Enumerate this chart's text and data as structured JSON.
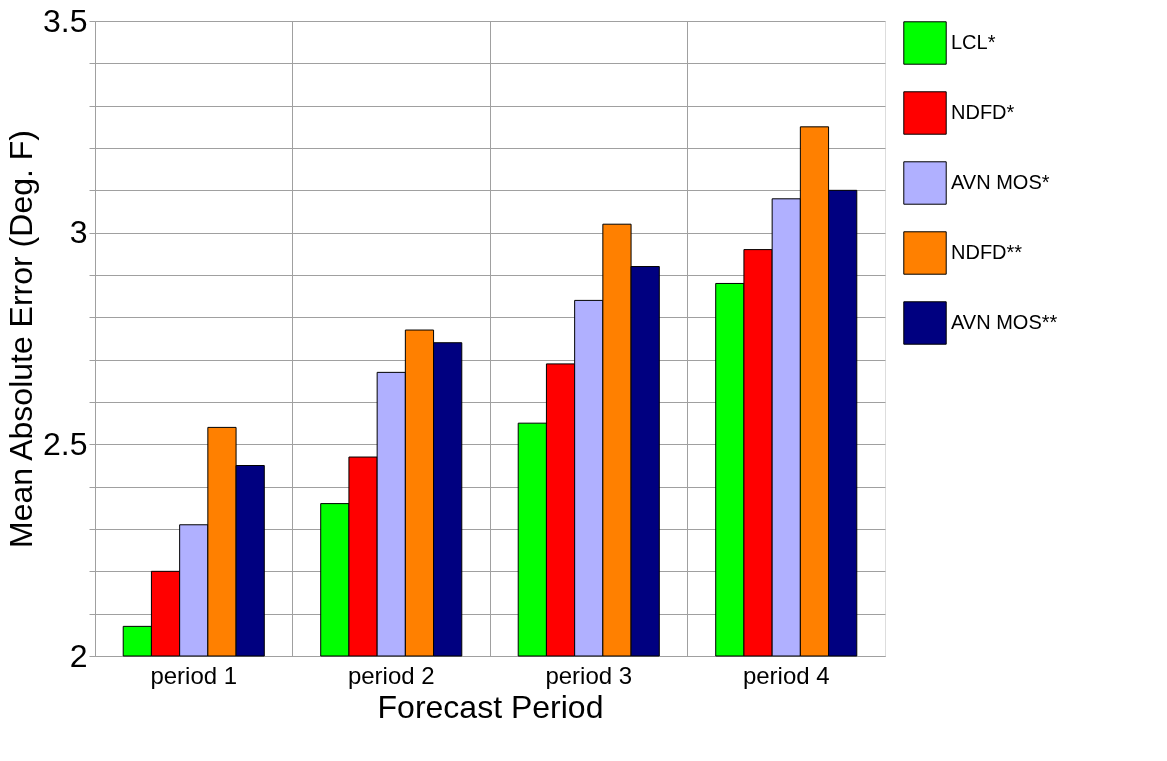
{
  "chart_data": {
    "type": "bar",
    "xlabel": "Forecast Period",
    "ylabel": "Mean Absolute Error (Deg. F)",
    "categories": [
      "period 1",
      "period 2",
      "period 3",
      "period 4"
    ],
    "series": [
      {
        "name": "LCL*",
        "color": "#00ff00",
        "values": [
          2.07,
          2.36,
          2.55,
          2.88
        ]
      },
      {
        "name": "NDFD*",
        "color": "#ff0000",
        "values": [
          2.2,
          2.47,
          2.69,
          2.96
        ]
      },
      {
        "name": "AVN MOS*",
        "color": "#b0b0ff",
        "values": [
          2.31,
          2.67,
          2.84,
          3.08
        ]
      },
      {
        "name": "NDFD**",
        "color": "#ff8000",
        "values": [
          2.54,
          2.77,
          3.02,
          3.25
        ]
      },
      {
        "name": "AVN MOS**",
        "color": "#000080",
        "values": [
          2.45,
          2.74,
          2.92,
          3.1
        ]
      }
    ],
    "ylim": [
      2,
      3.5
    ],
    "yticks": [
      2,
      {
        "value": 2.1,
        "label": null
      },
      {
        "value": 2.2,
        "label": null
      },
      {
        "value": 2.3,
        "label": null
      },
      {
        "value": 2.4,
        "label": null
      },
      2.5,
      {
        "value": 2.6,
        "label": null
      },
      {
        "value": 2.7,
        "label": null
      },
      {
        "value": 2.8,
        "label": null
      },
      {
        "value": 2.9,
        "label": null
      },
      3,
      {
        "value": 3.1,
        "label": null
      },
      {
        "value": 3.2,
        "label": null
      },
      {
        "value": 3.3,
        "label": null
      },
      {
        "value": 3.4,
        "label": null
      },
      3.5
    ],
    "grid": true,
    "legend": "right"
  }
}
